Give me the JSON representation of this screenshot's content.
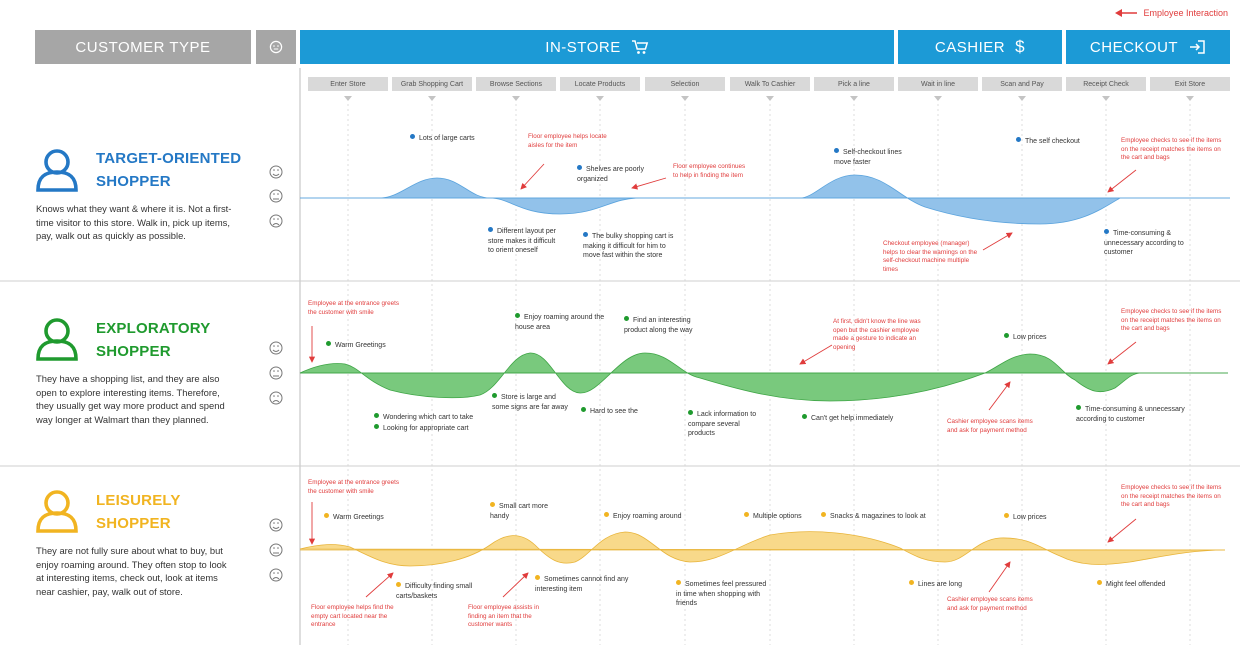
{
  "legend": {
    "label": "Employee Interaction",
    "color": "#e03c3c"
  },
  "header": {
    "customer_type": "CUSTOMER TYPE",
    "in_store": "IN-STORE",
    "cashier": "CASHIER",
    "checkout": "CHECKOUT"
  },
  "stages": [
    "Enter Store",
    "Grab Shopping Cart",
    "Browse Sections",
    "Locate Products",
    "Selection",
    "Walk To Cashier",
    "Pick a line",
    "Wait in line",
    "Scan and Pay",
    "Receipt Check",
    "Exit Store"
  ],
  "colors": {
    "header_gray": "#a6a6a6",
    "header_blue": "#1c9ad6",
    "target": "#2478c5",
    "exploratory": "#1f9a2e",
    "leisurely": "#f1b421",
    "target_fill": "#92c2ea",
    "exploratory_fill": "#79c97d",
    "leisurely_fill": "#f8d98a"
  },
  "personas": [
    {
      "name_line1": "TARGET-ORIENTED",
      "name_line2": "SHOPPER",
      "description": "Knows what they want & where it is. Not a first-time visitor to this store. Walk in, pick up items, pay, walk out as quickly as possible.",
      "notes": [
        "Lots of large carts",
        "Shelves are poorly organized",
        "Self-checkout lines move faster",
        "The self checkout",
        "Different layout per store makes it difficult to orient oneself",
        "The bulky shopping cart is making it difficult for him to move fast within the store",
        "Time-consuming & unnecessary according to customer"
      ],
      "employee_notes": [
        "Floor employee helps locate aisles for the item",
        "Floor employee continues to help in finding the item",
        "Employee checks to see if the items on the receipt matches the items on the cart and bags",
        "Checkout employee (manager) helps to clear the warnings on the self-checkout machine multiple times"
      ]
    },
    {
      "name_line1": "EXPLORATORY",
      "name_line2": "SHOPPER",
      "description": "They have a shopping list, and they are also open to explore interesting items. Therefore, they usually get way more product and spend way longer at Walmart than they planned.",
      "notes": [
        "Warm Greetings",
        "Enjoy roaming around the house area",
        "Find an interesting product along the way",
        "Low prices",
        "Wondering which cart to take",
        "Looking for appropriate cart",
        "Store is large and some signs are far away",
        "Hard to see the",
        "Lack information to compare several products",
        "Can't get help immediately",
        "Time-consuming & unnecessary according to customer"
      ],
      "employee_notes": [
        "Employee at the entrance greets the customer with smile",
        "At first, didn't know the line was open but the cashier employee made a gesture to indicate an opening",
        "Employee checks to see if the items on the receipt matches the items on the cart and bags",
        "Cashier employee scans items and ask for payment method"
      ]
    },
    {
      "name_line1": "LEISURELY",
      "name_line2": "SHOPPER",
      "description": "They are not fully sure about what to buy, but enjoy roaming around. They often stop to look at interesting items, check out, look at items near cashier, pay, walk out of store.",
      "notes": [
        "Warm Greetings",
        "Small cart more handy",
        "Enjoy roaming around",
        "Multiple options",
        "Snacks & magazines to look at",
        "Low prices",
        "Difficulty finding small carts/baskets",
        "Sometimes cannot find any interesting item",
        "Sometimes feel pressured in time when shopping with friends",
        "Lines are long",
        "Might feel offended"
      ],
      "employee_notes": [
        "Employee at the entrance greets the customer with smile",
        "Employee checks to see if the items on the receipt matches the items on the cart and bags",
        "Floor employee helps find the empty cart located near the entrance",
        "Floor employee assists in finding an item that the customer wants",
        "Cashier employee scans items and ask for payment method"
      ]
    }
  ]
}
